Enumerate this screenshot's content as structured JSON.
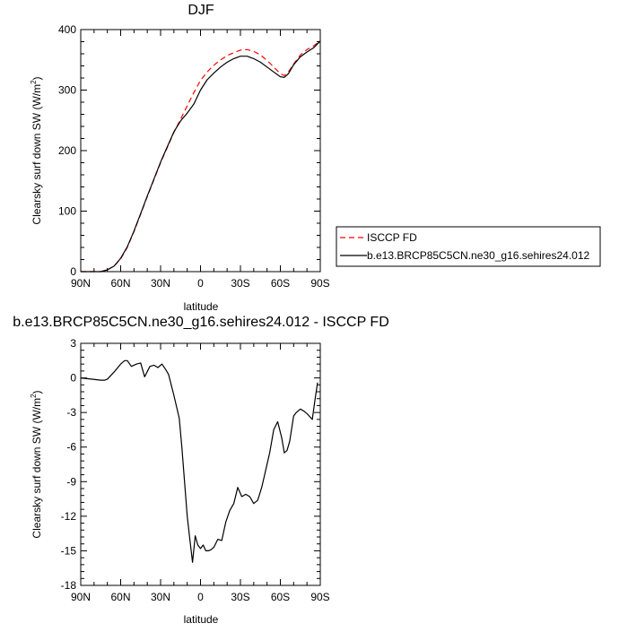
{
  "chart_data": [
    {
      "type": "line",
      "title": "DJF",
      "xlabel": "latitude",
      "ylabel": "Clearsky surf down SW (W/m",
      "ylabel_sup": "2",
      "ylabel_end": ")",
      "xlim": [
        90,
        -90
      ],
      "ylim": [
        0,
        400
      ],
      "xticks": [
        {
          "value": 90,
          "label": "90N"
        },
        {
          "value": 60,
          "label": "60N"
        },
        {
          "value": 30,
          "label": "30N"
        },
        {
          "value": 0,
          "label": "0"
        },
        {
          "value": -30,
          "label": "30S"
        },
        {
          "value": -60,
          "label": "60S"
        },
        {
          "value": -90,
          "label": "90S"
        }
      ],
      "yticks": [
        {
          "value": 0,
          "label": "0"
        },
        {
          "value": 100,
          "label": "100"
        },
        {
          "value": 200,
          "label": "200"
        },
        {
          "value": 300,
          "label": "300"
        },
        {
          "value": 400,
          "label": "400"
        }
      ],
      "legend_position": "bottom-right, outside plot",
      "series": [
        {
          "name": "ISCCP FD",
          "color": "#ff0000",
          "dash": true,
          "x": [
            90,
            80,
            75,
            70,
            65,
            60,
            55,
            50,
            45,
            40,
            35,
            30,
            25,
            20,
            15,
            10,
            5,
            0,
            -5,
            -10,
            -15,
            -20,
            -25,
            -30,
            -35,
            -40,
            -45,
            -50,
            -55,
            -60,
            -63,
            -66,
            -70,
            -75,
            -80,
            -85,
            -90
          ],
          "y": [
            0,
            0,
            0,
            3,
            9,
            21,
            40,
            66,
            95,
            124,
            152,
            180,
            205,
            230,
            252,
            274,
            296,
            316,
            330,
            341,
            350,
            357,
            362,
            366,
            367,
            364,
            358,
            349,
            338,
            327,
            324,
            330,
            343,
            358,
            367,
            373,
            382
          ]
        },
        {
          "name": "b.e13.BRCP85C5CN.ne30_g16.sehires24.012",
          "color": "#000000",
          "dash": false,
          "x": [
            90,
            80,
            75,
            70,
            65,
            60,
            55,
            50,
            45,
            40,
            35,
            30,
            25,
            20,
            15,
            10,
            5,
            0,
            -5,
            -10,
            -15,
            -20,
            -25,
            -30,
            -35,
            -40,
            -45,
            -50,
            -55,
            -60,
            -63,
            -66,
            -70,
            -75,
            -80,
            -85,
            -90
          ],
          "y": [
            0,
            0,
            0,
            3,
            9,
            22,
            41,
            67,
            96,
            125,
            153,
            181,
            206,
            231,
            249,
            262,
            277,
            300,
            317,
            328,
            338,
            346,
            352,
            356,
            356,
            352,
            346,
            338,
            330,
            322,
            321,
            327,
            342,
            355,
            363,
            370,
            381
          ]
        }
      ]
    },
    {
      "type": "line",
      "title": "b.e13.BRCP85C5CN.ne30_g16.sehires24.012 - ISCCP FD",
      "xlabel": "latitude",
      "ylabel": "Clearsky surf down SW (W/m",
      "ylabel_sup": "2",
      "ylabel_end": ")",
      "xlim": [
        90,
        -90
      ],
      "ylim": [
        -18,
        3
      ],
      "xticks": [
        {
          "value": 90,
          "label": "90N"
        },
        {
          "value": 60,
          "label": "60N"
        },
        {
          "value": 30,
          "label": "30N"
        },
        {
          "value": 0,
          "label": "0"
        },
        {
          "value": -30,
          "label": "30S"
        },
        {
          "value": -60,
          "label": "60S"
        },
        {
          "value": -90,
          "label": "90S"
        }
      ],
      "yticks": [
        {
          "value": 3,
          "label": "3"
        },
        {
          "value": 0,
          "label": "0"
        },
        {
          "value": -3,
          "label": "-3"
        },
        {
          "value": -6,
          "label": "-6"
        },
        {
          "value": -9,
          "label": "-9"
        },
        {
          "value": -12,
          "label": "-12"
        },
        {
          "value": -15,
          "label": "-15"
        },
        {
          "value": -18,
          "label": "-18"
        }
      ],
      "series": [
        {
          "color": "#000000",
          "x": [
            90,
            82,
            75,
            72,
            70,
            65,
            60,
            57,
            55,
            52,
            48,
            45,
            42,
            38,
            35,
            32,
            29,
            26,
            24,
            20,
            18,
            16,
            14,
            12,
            10,
            8,
            6,
            4,
            2,
            0,
            -2,
            -4,
            -6,
            -8,
            -10,
            -13,
            -16,
            -19,
            -22,
            -25,
            -28,
            -31,
            -34,
            -37,
            -40,
            -43,
            -46,
            -48,
            -52,
            -55,
            -58,
            -61,
            -63,
            -65,
            -67,
            -70,
            -72,
            -75,
            -78,
            -80,
            -84,
            -86,
            -88
          ],
          "y": [
            0,
            -0.1,
            -0.2,
            -0.2,
            -0.1,
            0.5,
            1.2,
            1.5,
            1.5,
            1.0,
            1.2,
            1.3,
            0.1,
            1.0,
            1.1,
            0.9,
            1.2,
            0.7,
            0.3,
            -1.5,
            -2.5,
            -3.5,
            -6,
            -9,
            -12,
            -14,
            -16,
            -13.7,
            -14.5,
            -14.8,
            -14.5,
            -15,
            -15,
            -14.9,
            -14.7,
            -14,
            -14.1,
            -12.5,
            -11.5,
            -10.9,
            -9.5,
            -10.3,
            -10.1,
            -10.3,
            -10.9,
            -10.6,
            -9.5,
            -8.5,
            -6.5,
            -4.5,
            -3.8,
            -5.2,
            -6.5,
            -6.3,
            -5.5,
            -3.3,
            -3.0,
            -2.7,
            -2.9,
            -3.1,
            -3.6,
            -1.9,
            -0.4
          ]
        }
      ]
    }
  ]
}
